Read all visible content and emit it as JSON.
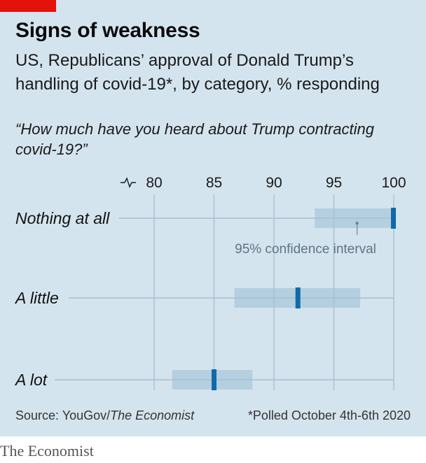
{
  "header": {
    "title": "Signs of weakness",
    "subtitle": "US, Republicans’ approval of Donald Trump’s handling of covid-19*, by category, % responding",
    "question": "“How much have you heard about Trump contracting covid-19?”"
  },
  "footer": {
    "source_prefix": "Source: YouGov/",
    "source_italic": "The Economist",
    "note": "*Polled October 4th-6th 2020",
    "brand": "The Economist"
  },
  "colors": {
    "background": "#d4e4ef",
    "ci_band": "#b4cfe0",
    "estimate": "#0e6aa8",
    "grid": "#a9bfcf",
    "accent": "#e3120b"
  },
  "chart_data": {
    "type": "dot-range",
    "axis": {
      "min": 80,
      "max": 100,
      "ticks": [
        80,
        85,
        90,
        95,
        100
      ],
      "broken_axis": true
    },
    "annotation": "95% confidence interval",
    "categories": [
      {
        "label": "Nothing at all",
        "value": 100,
        "ci_low": 93.4,
        "ci_high": 100
      },
      {
        "label": "A little",
        "value": 92,
        "ci_low": 86.7,
        "ci_high": 97.2
      },
      {
        "label": "A lot",
        "value": 85,
        "ci_low": 81.5,
        "ci_high": 88.2
      }
    ]
  }
}
